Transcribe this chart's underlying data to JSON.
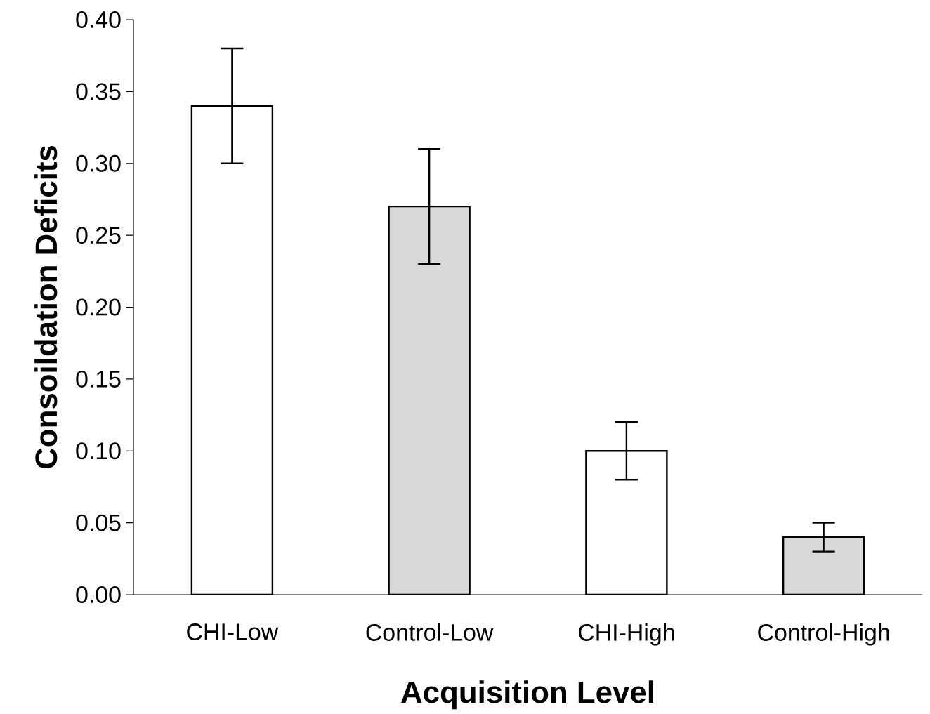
{
  "chart_data": {
    "type": "bar",
    "xlabel": "Acquisition Level",
    "ylabel": "Consoildation Deficits",
    "categories": [
      "CHI-Low",
      "Control-Low",
      "CHI-High",
      "Control-High"
    ],
    "values": [
      0.34,
      0.27,
      0.1,
      0.04
    ],
    "errors": [
      0.04,
      0.04,
      0.02,
      0.01
    ],
    "colors": [
      "#ffffff",
      "#d9d9d9",
      "#ffffff",
      "#d9d9d9"
    ],
    "ylim": [
      0,
      0.4
    ],
    "yticks": [
      {
        "value": 0,
        "label": "0.00"
      },
      {
        "value": 0.05,
        "label": "0.05"
      },
      {
        "value": 0.1,
        "label": "0.10"
      },
      {
        "value": 0.15,
        "label": "0.15"
      },
      {
        "value": 0.2,
        "label": "0.20"
      },
      {
        "value": 0.25,
        "label": "0.25"
      },
      {
        "value": 0.3,
        "label": "0.30"
      },
      {
        "value": 0.35,
        "label": "0.35"
      },
      {
        "value": 0.4,
        "label": "0.40"
      }
    ]
  }
}
